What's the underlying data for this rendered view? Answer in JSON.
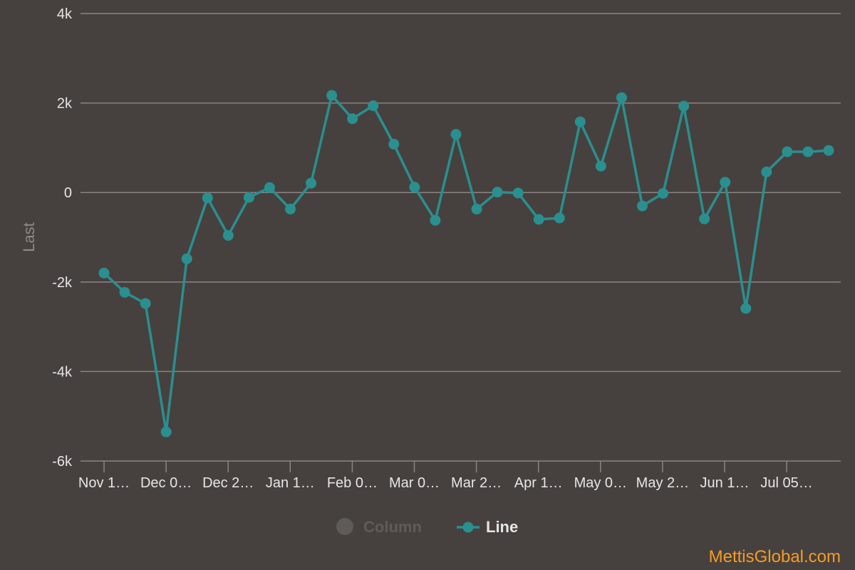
{
  "chart_data": {
    "type": "line",
    "ylabel": "Last",
    "ylim": [
      -6000,
      4000
    ],
    "y_ticks": [
      {
        "value": 4000,
        "label": "4k"
      },
      {
        "value": 2000,
        "label": "2k"
      },
      {
        "value": 0,
        "label": "0"
      },
      {
        "value": -2000,
        "label": "-2k"
      },
      {
        "value": -4000,
        "label": "-4k"
      },
      {
        "value": -6000,
        "label": "-6k"
      }
    ],
    "x_tick_labels": [
      "Nov 1…",
      "Dec 0…",
      "Dec 2…",
      "Jan 1…",
      "Feb 0…",
      "Mar 0…",
      "Mar 2…",
      "Apr 1…",
      "May 0…",
      "May 2…",
      "Jun 1…",
      "Jul 05…"
    ],
    "grid": true,
    "series": [
      {
        "name": "Line",
        "color": "#2a8f8f",
        "values": [
          -1800,
          -2230,
          -2480,
          -5350,
          -1480,
          -120,
          -960,
          -110,
          110,
          -370,
          210,
          2170,
          1650,
          1940,
          1080,
          120,
          -620,
          1300,
          -370,
          10,
          -10,
          -600,
          -570,
          1580,
          590,
          2120,
          -300,
          -20,
          1930,
          -590,
          230,
          -2590,
          460,
          910,
          910,
          940
        ]
      }
    ],
    "legend": {
      "position": "bottom",
      "items": [
        {
          "name": "Column",
          "visible": false,
          "color": "#5f5b58"
        },
        {
          "name": "Line",
          "visible": true,
          "color": "#2a8f8f"
        }
      ]
    },
    "credit": "MettisGlobal.com"
  }
}
